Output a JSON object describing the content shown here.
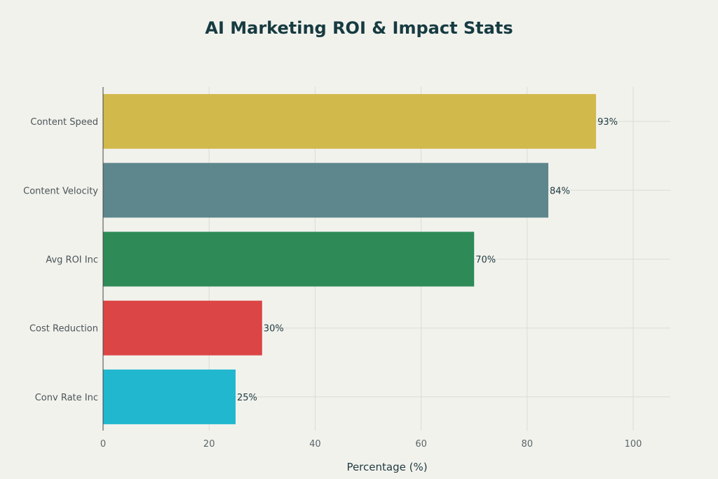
{
  "chart_data": {
    "type": "bar",
    "orientation": "horizontal",
    "title": "AI Marketing ROI & Impact Stats",
    "xlabel": "Percentage (%)",
    "ylabel": "",
    "xlim": [
      0,
      107
    ],
    "xticks": [
      0,
      20,
      40,
      60,
      80,
      100
    ],
    "grid": true,
    "categories": [
      "Content Speed",
      "Content Velocity",
      "Avg ROI Inc",
      "Cost Reduction",
      "Conv Rate Inc"
    ],
    "values": [
      93,
      84,
      70,
      30,
      25
    ],
    "data_labels": [
      "93%",
      "84%",
      "70%",
      "30%",
      "25%"
    ],
    "colors": [
      "#d2b94c",
      "#5d878c",
      "#2e8b57",
      "#db4545",
      "#21b8cf"
    ]
  }
}
